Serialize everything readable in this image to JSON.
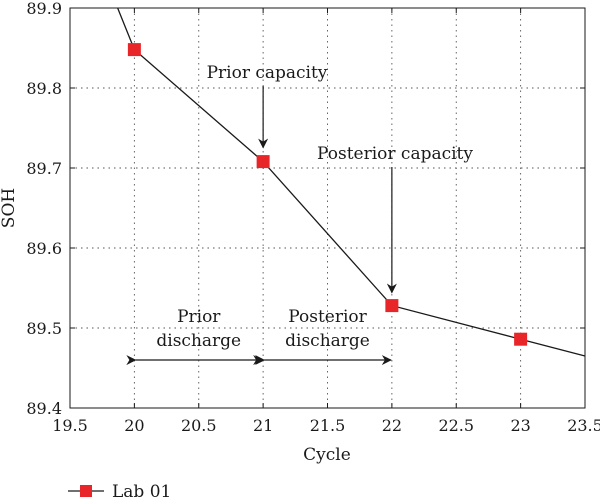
{
  "chart_data": {
    "type": "line",
    "xlabel": "Cycle",
    "ylabel": "SOH",
    "xlim": [
      19.5,
      23.5
    ],
    "ylim": [
      89.4,
      89.9
    ],
    "x_ticks": [
      "19.5",
      "20",
      "20.5",
      "21",
      "21.5",
      "22",
      "22.5",
      "23",
      "23.5"
    ],
    "y_ticks": [
      "89.4",
      "89.5",
      "89.6",
      "89.7",
      "89.8",
      "89.9"
    ],
    "grid": true,
    "legend_position": "bottom-left",
    "series": [
      {
        "name": "Lab 01",
        "color": "#e8262a",
        "line_color": "#1a1a1a",
        "marker": "square",
        "line_x": [
          19.87,
          20,
          21,
          22,
          23,
          23.5
        ],
        "line_y": [
          89.9,
          89.848,
          89.708,
          89.528,
          89.486,
          89.465
        ],
        "marker_x": [
          20,
          21,
          22,
          23
        ],
        "marker_y": [
          89.848,
          89.708,
          89.528,
          89.486
        ]
      }
    ],
    "annotations": [
      {
        "text": "Prior capacity",
        "points_to": [
          21,
          89.708
        ]
      },
      {
        "text": "Posterior capacity",
        "points_to": [
          22,
          89.528
        ]
      },
      {
        "text": [
          "Prior",
          "discharge"
        ],
        "span": [
          20,
          21
        ],
        "y": 89.46
      },
      {
        "text": [
          "Posterior",
          "discharge"
        ],
        "span": [
          21,
          22
        ],
        "y": 89.46
      }
    ]
  }
}
